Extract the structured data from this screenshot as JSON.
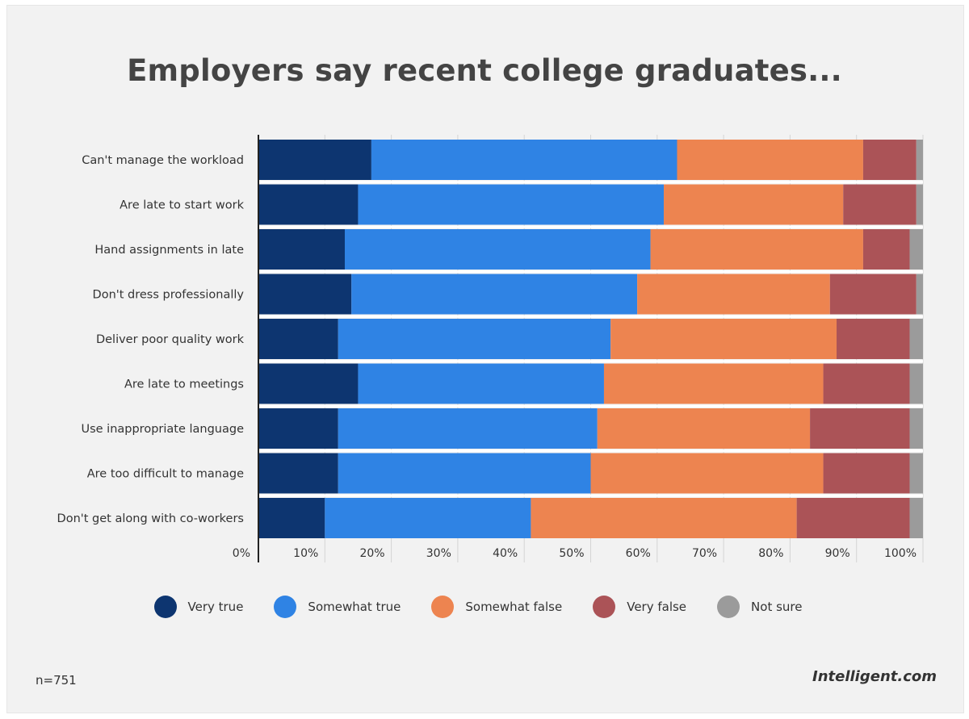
{
  "footnote": "n=751",
  "brand": "Intelligent.com",
  "chart_data": {
    "type": "bar",
    "orientation": "horizontal",
    "stacked": true,
    "title": "Employers say recent college graduates...",
    "xlabel": "",
    "ylabel": "",
    "xlim": [
      0,
      100
    ],
    "x_tick_labels": [
      "0%",
      "10%",
      "20%",
      "30%",
      "40%",
      "50%",
      "60%",
      "70%",
      "80%",
      "90%",
      "100%"
    ],
    "grid": true,
    "legend_position": "bottom",
    "categories": [
      "Can't manage the workload",
      "Are late to start work",
      "Hand assignments in late",
      "Don't dress professionally",
      "Deliver poor quality work",
      "Are late to meetings",
      "Use inappropriate language",
      "Are too difficult to manage",
      "Don't get along with co-workers"
    ],
    "series": [
      {
        "name": "Very true",
        "color": "#0d3570",
        "values": [
          17,
          15,
          13,
          14,
          12,
          15,
          12,
          12,
          10
        ]
      },
      {
        "name": "Somewhat true",
        "color": "#2f83e4",
        "values": [
          46,
          46,
          46,
          43,
          41,
          37,
          39,
          38,
          31
        ]
      },
      {
        "name": "Somewhat false",
        "color": "#ed8450",
        "values": [
          28,
          27,
          32,
          29,
          34,
          33,
          32,
          35,
          40
        ]
      },
      {
        "name": "Very false",
        "color": "#ab5357",
        "values": [
          8,
          11,
          7,
          13,
          11,
          13,
          15,
          13,
          17
        ]
      },
      {
        "name": "Not sure",
        "color": "#9b9b9b",
        "values": [
          1,
          1,
          2,
          1,
          2,
          2,
          2,
          2,
          2
        ]
      }
    ]
  }
}
